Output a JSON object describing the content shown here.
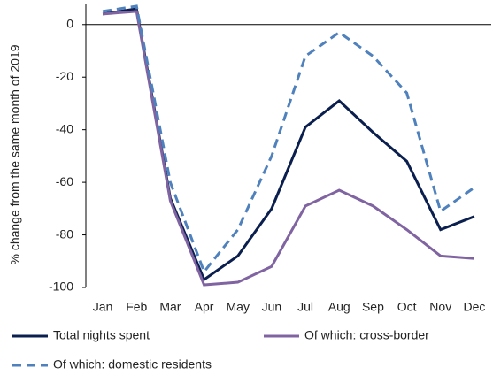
{
  "chart_data": {
    "type": "line",
    "y_label": "% change from the same month of 2019",
    "categories": [
      "Jan",
      "Feb",
      "Mar",
      "Apr",
      "May",
      "Jun",
      "Jul",
      "Aug",
      "Sep",
      "Oct",
      "Nov",
      "Dec"
    ],
    "series": [
      {
        "name": "Total nights spent",
        "color": "#0b1f4f",
        "dash": "solid",
        "values": [
          4,
          6,
          -66,
          -97,
          -88,
          -70,
          -39,
          -29,
          -41,
          -52,
          -78,
          -73
        ]
      },
      {
        "name": "Of which: cross-border",
        "color": "#8064a2",
        "dash": "solid",
        "values": [
          4,
          5,
          -67,
          -99,
          -98,
          -92,
          -69,
          -63,
          -69,
          -78,
          -88,
          -89
        ]
      },
      {
        "name": "Of which: domestic residents",
        "color": "#4f81bd",
        "dash": "dashed",
        "values": [
          5,
          7,
          -60,
          -94,
          -78,
          -50,
          -12,
          -3,
          -12,
          -26,
          -71,
          -62
        ]
      }
    ],
    "ylim": [
      -100,
      8
    ],
    "yticks": [
      0,
      -20,
      -40,
      -60,
      -80,
      -100
    ],
    "grid": false
  }
}
